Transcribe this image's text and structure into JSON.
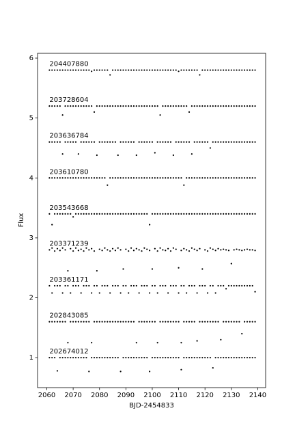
{
  "chart_data": {
    "type": "scatter",
    "x_label": "BJD-2454833",
    "y_label": "Flux",
    "xlim": [
      2056.5,
      2143
    ],
    "ylim": [
      0.5,
      6.08
    ],
    "xticks": [
      2060,
      2070,
      2080,
      2090,
      2100,
      2110,
      2120,
      2130,
      2140
    ],
    "yticks": [
      1,
      2,
      3,
      4,
      5,
      6
    ],
    "x": [
      2061,
      2062,
      2063,
      2064,
      2065,
      2066,
      2067,
      2068,
      2069,
      2070,
      2071,
      2072,
      2073,
      2074,
      2075,
      2076,
      2077,
      2078,
      2079,
      2080,
      2081,
      2082,
      2083,
      2084,
      2085,
      2086,
      2087,
      2088,
      2089,
      2090,
      2091,
      2092,
      2093,
      2094,
      2095,
      2096,
      2097,
      2098,
      2099,
      2100,
      2101,
      2102,
      2103,
      2104,
      2105,
      2106,
      2107,
      2108,
      2109,
      2110,
      2111,
      2112,
      2113,
      2114,
      2115,
      2116,
      2117,
      2118,
      2119,
      2120,
      2121,
      2122,
      2123,
      2124,
      2125,
      2126,
      2127,
      2128,
      2129,
      2130,
      2131,
      2132,
      2133,
      2134,
      2135,
      2136,
      2137,
      2138,
      2139
    ],
    "series": [
      {
        "name": "204407880",
        "color": "#000000",
        "values": [
          5.8,
          5.8,
          5.8,
          5.8,
          5.8,
          5.8,
          5.8,
          5.8,
          5.8,
          5.8,
          5.8,
          5.8,
          5.8,
          5.8,
          5.8,
          5.8,
          5.78,
          5.8,
          5.8,
          5.8,
          5.8,
          5.8,
          5.8,
          5.72,
          5.8,
          5.8,
          5.8,
          5.8,
          5.8,
          5.8,
          5.8,
          5.8,
          5.8,
          5.8,
          5.8,
          5.8,
          5.8,
          5.8,
          5.8,
          5.8,
          5.8,
          5.8,
          5.8,
          5.8,
          5.8,
          5.8,
          5.8,
          5.8,
          5.8,
          5.78,
          5.8,
          5.8,
          5.8,
          5.8,
          5.8,
          5.8,
          5.8,
          5.72,
          5.8,
          5.8,
          5.8,
          5.8,
          5.8,
          5.8,
          5.8,
          5.8,
          5.8,
          5.8,
          5.8,
          5.8,
          5.8,
          5.8,
          5.8,
          5.8,
          5.8,
          5.8,
          5.8,
          5.8,
          5.8
        ]
      },
      {
        "name": "203728604",
        "color": "#000000",
        "values": [
          5.2,
          5.2,
          5.2,
          5.2,
          5.2,
          5.05,
          5.2,
          5.2,
          5.2,
          5.2,
          5.2,
          5.2,
          5.2,
          5.2,
          5.2,
          5.2,
          5.2,
          5.1,
          5.2,
          5.2,
          5.2,
          5.2,
          5.2,
          5.2,
          5.2,
          5.2,
          5.2,
          5.2,
          5.2,
          5.2,
          5.2,
          5.2,
          5.2,
          5.2,
          5.2,
          5.2,
          5.2,
          5.2,
          5.2,
          5.2,
          5.2,
          5.2,
          5.05,
          5.2,
          5.2,
          5.2,
          5.2,
          5.2,
          5.2,
          5.2,
          5.2,
          5.2,
          5.2,
          5.1,
          5.2,
          5.2,
          5.2,
          5.2,
          5.2,
          5.2,
          5.2,
          5.2,
          5.2,
          5.2,
          5.2,
          5.2,
          5.2,
          5.2,
          5.2,
          5.2,
          5.2,
          5.2,
          5.2,
          5.2,
          5.2,
          5.2,
          5.2,
          5.2,
          5.2
        ]
      },
      {
        "name": "203636784",
        "color": "#000000",
        "values": [
          4.6,
          4.6,
          4.6,
          4.6,
          4.6,
          4.4,
          4.6,
          4.6,
          4.6,
          4.6,
          4.6,
          4.4,
          4.6,
          4.6,
          4.6,
          4.6,
          4.6,
          4.6,
          4.38,
          4.6,
          4.6,
          4.6,
          4.6,
          4.6,
          4.6,
          4.6,
          4.38,
          4.6,
          4.6,
          4.6,
          4.6,
          4.6,
          4.6,
          4.38,
          4.6,
          4.6,
          4.6,
          4.6,
          4.6,
          4.6,
          4.42,
          4.6,
          4.6,
          4.6,
          4.6,
          4.6,
          4.6,
          4.38,
          4.6,
          4.6,
          4.6,
          4.6,
          4.6,
          4.6,
          4.4,
          4.6,
          4.6,
          4.6,
          4.6,
          4.6,
          4.6,
          4.5,
          4.6,
          4.6,
          4.6,
          4.6,
          4.6,
          4.6,
          4.6,
          4.6,
          4.6,
          4.6,
          4.6,
          4.6,
          4.6,
          4.6,
          4.6,
          4.6,
          4.6
        ]
      },
      {
        "name": "203610780",
        "color": "#000000",
        "values": [
          4.0,
          4.0,
          4.0,
          4.0,
          4.0,
          4.0,
          4.0,
          4.0,
          4.0,
          4.0,
          4.0,
          4.0,
          4.0,
          4.0,
          4.0,
          4.0,
          4.0,
          4.0,
          4.0,
          4.0,
          4.0,
          4.0,
          3.88,
          4.0,
          4.0,
          4.0,
          4.0,
          4.0,
          4.0,
          4.0,
          4.0,
          4.0,
          4.0,
          4.0,
          4.0,
          4.0,
          4.0,
          4.0,
          4.0,
          4.0,
          4.0,
          4.0,
          4.0,
          4.0,
          4.0,
          4.0,
          4.0,
          4.0,
          4.0,
          4.0,
          4.0,
          3.88,
          4.0,
          4.0,
          4.0,
          4.0,
          4.0,
          4.0,
          4.0,
          4.0,
          4.0,
          4.0,
          4.0,
          4.0,
          4.0,
          4.0,
          4.0,
          4.0,
          4.0,
          4.0,
          4.0,
          4.0,
          4.0,
          4.0,
          4.0,
          4.0,
          4.0,
          4.0,
          4.0
        ]
      },
      {
        "name": "203543668",
        "color": "#000000",
        "values": [
          3.4,
          3.22,
          3.4,
          3.4,
          3.4,
          3.4,
          3.4,
          3.4,
          3.4,
          3.35,
          3.4,
          3.4,
          3.4,
          3.4,
          3.4,
          3.4,
          3.4,
          3.4,
          3.4,
          3.4,
          3.4,
          3.4,
          3.4,
          3.4,
          3.4,
          3.4,
          3.4,
          3.4,
          3.4,
          3.4,
          3.4,
          3.4,
          3.4,
          3.4,
          3.4,
          3.4,
          3.4,
          3.4,
          3.22,
          3.4,
          3.4,
          3.4,
          3.4,
          3.4,
          3.4,
          3.4,
          3.4,
          3.4,
          3.4,
          3.4,
          3.4,
          3.4,
          3.4,
          3.4,
          3.4,
          3.4,
          3.4,
          3.4,
          3.4,
          3.4,
          3.4,
          3.4,
          3.4,
          3.4,
          3.4,
          3.4,
          3.4,
          3.4,
          3.4,
          3.4,
          3.4,
          3.4,
          3.4,
          3.4,
          3.4,
          3.4,
          3.4,
          3.4,
          3.4
        ]
      },
      {
        "name": "203371239",
        "color": "#000000",
        "values": [
          2.8,
          2.83,
          2.78,
          2.82,
          2.79,
          2.83,
          2.8,
          2.45,
          2.82,
          2.78,
          2.83,
          2.79,
          2.81,
          2.78,
          2.83,
          2.8,
          2.82,
          2.78,
          2.45,
          2.81,
          2.79,
          2.83,
          2.8,
          2.78,
          2.82,
          2.79,
          2.83,
          2.8,
          2.48,
          2.81,
          2.78,
          2.83,
          2.79,
          2.82,
          2.8,
          2.78,
          2.83,
          2.81,
          2.79,
          2.48,
          2.82,
          2.78,
          2.83,
          2.8,
          2.79,
          2.82,
          2.78,
          2.83,
          2.81,
          2.5,
          2.79,
          2.82,
          2.8,
          2.78,
          2.83,
          2.81,
          2.79,
          2.82,
          2.48,
          2.8,
          2.78,
          2.83,
          2.81,
          2.79,
          2.82,
          2.8,
          2.81,
          2.8,
          2.79,
          2.57,
          2.8,
          2.81,
          2.8,
          2.79,
          2.8,
          2.81,
          2.8,
          2.8,
          2.79
        ]
      },
      {
        "name": "203361171",
        "color": "#000000",
        "values": [
          2.2,
          2.08,
          2.2,
          2.2,
          2.2,
          2.08,
          2.2,
          2.2,
          2.08,
          2.2,
          2.2,
          2.2,
          2.08,
          2.2,
          2.2,
          2.2,
          2.08,
          2.2,
          2.2,
          2.08,
          2.2,
          2.2,
          2.2,
          2.08,
          2.2,
          2.2,
          2.2,
          2.08,
          2.2,
          2.2,
          2.08,
          2.2,
          2.2,
          2.2,
          2.08,
          2.2,
          2.2,
          2.2,
          2.08,
          2.2,
          2.2,
          2.08,
          2.2,
          2.2,
          2.2,
          2.08,
          2.2,
          2.2,
          2.2,
          2.08,
          2.2,
          2.2,
          2.08,
          2.2,
          2.2,
          2.2,
          2.08,
          2.2,
          2.2,
          2.2,
          2.08,
          2.2,
          2.2,
          2.08,
          2.2,
          2.2,
          2.2,
          2.15,
          2.2,
          2.2,
          2.2,
          2.2,
          2.2,
          2.2,
          2.2,
          2.2,
          2.2,
          2.2,
          2.1
        ]
      },
      {
        "name": "202843085",
        "color": "#000000",
        "values": [
          1.6,
          1.6,
          1.6,
          1.6,
          1.6,
          1.6,
          1.6,
          1.25,
          1.6,
          1.6,
          1.6,
          1.6,
          1.6,
          1.6,
          1.6,
          1.6,
          1.25,
          1.6,
          1.6,
          1.6,
          1.6,
          1.6,
          1.6,
          1.6,
          1.6,
          1.6,
          1.6,
          1.6,
          1.6,
          1.6,
          1.6,
          1.6,
          1.6,
          1.25,
          1.6,
          1.6,
          1.6,
          1.6,
          1.6,
          1.6,
          1.6,
          1.25,
          1.6,
          1.6,
          1.6,
          1.6,
          1.6,
          1.6,
          1.6,
          1.6,
          1.25,
          1.6,
          1.6,
          1.6,
          1.6,
          1.6,
          1.28,
          1.6,
          1.6,
          1.6,
          1.6,
          1.6,
          1.6,
          1.6,
          1.6,
          1.3,
          1.6,
          1.6,
          1.6,
          1.6,
          1.6,
          1.6,
          1.6,
          1.4,
          1.6,
          1.6,
          1.6,
          1.6,
          1.6
        ]
      },
      {
        "name": "202674012",
        "color": "#000000",
        "values": [
          1.0,
          1.0,
          1.0,
          0.78,
          1.0,
          1.0,
          1.0,
          1.0,
          1.0,
          1.0,
          1.0,
          1.0,
          1.0,
          1.0,
          1.0,
          0.77,
          1.0,
          1.0,
          1.0,
          1.0,
          1.0,
          1.0,
          1.0,
          1.0,
          1.0,
          1.0,
          1.0,
          0.77,
          1.0,
          1.0,
          1.0,
          1.0,
          1.0,
          1.0,
          1.0,
          1.0,
          1.0,
          1.0,
          0.77,
          1.0,
          1.0,
          1.0,
          1.0,
          1.0,
          1.0,
          1.0,
          1.0,
          1.0,
          1.0,
          1.0,
          0.8,
          1.0,
          1.0,
          1.0,
          1.0,
          1.0,
          1.0,
          1.0,
          1.0,
          1.0,
          1.0,
          1.0,
          0.83,
          1.0,
          1.0,
          1.0,
          1.0,
          1.0,
          1.0,
          1.0,
          1.0,
          1.0,
          1.0,
          1.0,
          1.0,
          1.0,
          1.0,
          1.0,
          1.0
        ]
      }
    ]
  }
}
